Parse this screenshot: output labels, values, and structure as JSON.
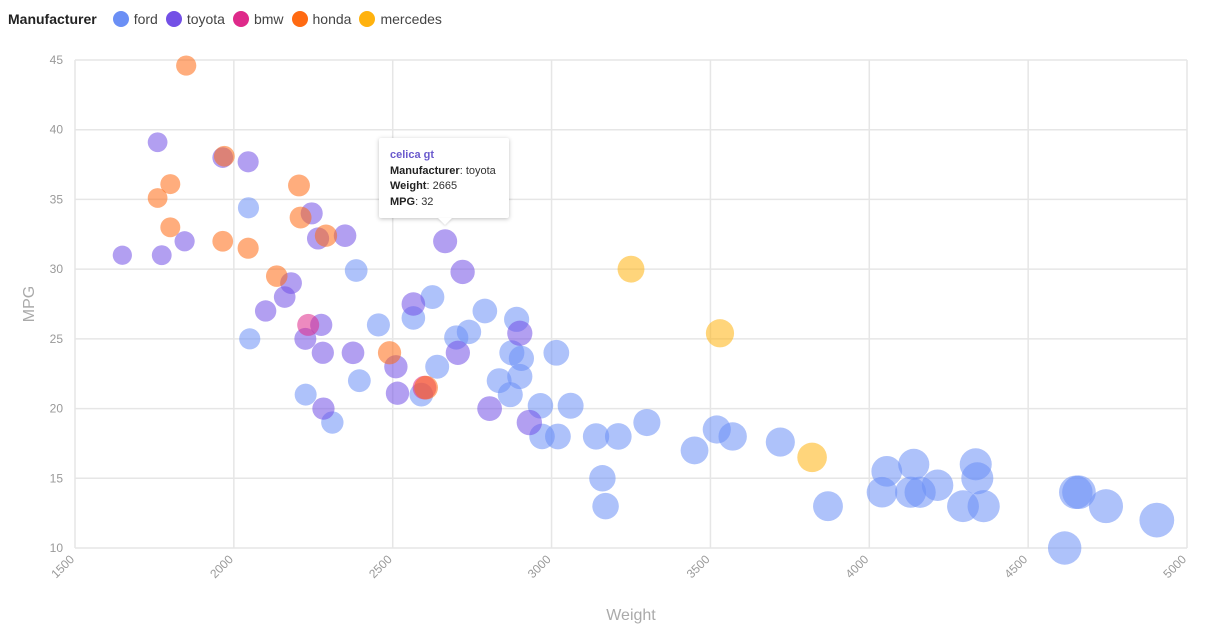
{
  "legend": {
    "title": "Manufacturer",
    "items": [
      {
        "label": "ford",
        "color": "#6b8ff5"
      },
      {
        "label": "toyota",
        "color": "#7350e6"
      },
      {
        "label": "bmw",
        "color": "#de2a8a"
      },
      {
        "label": "honda",
        "color": "#ff6a12"
      },
      {
        "label": "mercedes",
        "color": "#ffb20e"
      }
    ]
  },
  "tooltip": {
    "name": "celica gt",
    "manufacturer_label": "Manufacturer",
    "manufacturer": "toyota",
    "weight_label": "Weight",
    "weight": "2665",
    "mpg_label": "MPG",
    "mpg": "32"
  },
  "chart_data": {
    "type": "scatter",
    "title": "",
    "xlabel": "Weight",
    "ylabel": "MPG",
    "xlim": [
      1500,
      5000
    ],
    "ylim": [
      10,
      45
    ],
    "xticks": [
      1500,
      2000,
      2500,
      3000,
      3500,
      4000,
      4500,
      5000
    ],
    "yticks": [
      10,
      15,
      20,
      25,
      30,
      35,
      40,
      45
    ],
    "grid": true,
    "legend_position": "top-left",
    "size_encodes": "Weight",
    "series": [
      {
        "name": "ford",
        "color": "#6b8ff5",
        "x": [
          2046,
          2050,
          2226,
          2310,
          2395,
          2385,
          2455,
          2565,
          2590,
          2625,
          2640,
          2700,
          2740,
          2790,
          2835,
          2870,
          2875,
          2890,
          2900,
          2905,
          2965,
          2970,
          3015,
          3020,
          3060,
          3140,
          3160,
          3170,
          3210,
          3300,
          3450,
          3520,
          3570,
          3720,
          3870,
          4040,
          4055,
          4130,
          4140,
          4160,
          4215,
          4295,
          4335,
          4340,
          4360,
          4615,
          4650,
          4660,
          4745,
          4905
        ],
        "y": [
          34.4,
          25,
          21,
          19,
          22,
          29.9,
          26,
          26.5,
          21,
          28,
          23,
          25.1,
          25.5,
          27,
          22,
          21,
          24,
          26.4,
          22.3,
          23.6,
          20.2,
          18,
          24,
          18,
          20.2,
          18,
          15,
          13,
          18,
          19,
          17,
          18.5,
          18,
          17.6,
          13,
          14,
          15.5,
          14,
          16,
          14,
          14.5,
          13,
          16,
          15,
          13,
          10,
          14,
          14,
          13,
          12
        ]
      },
      {
        "name": "toyota",
        "color": "#7350e6",
        "x": [
          1649,
          1760,
          1773,
          1845,
          1965,
          2045,
          2100,
          2160,
          2180,
          2225,
          2245,
          2265,
          2275,
          2280,
          2282,
          2350,
          2375,
          2510,
          2515,
          2565,
          2665,
          2705,
          2720,
          2805,
          2900,
          2930
        ],
        "y": [
          31,
          39.1,
          31,
          32,
          38,
          37.7,
          27,
          28,
          29,
          25,
          34,
          32.2,
          26,
          24,
          20,
          32.4,
          24,
          23,
          21.1,
          27.5,
          32,
          24,
          29.8,
          20,
          25.4,
          19
        ]
      },
      {
        "name": "bmw",
        "color": "#de2a8a",
        "x": [
          2234,
          2600
        ],
        "y": [
          26,
          21.5
        ]
      },
      {
        "name": "honda",
        "color": "#ff6a12",
        "x": [
          1760,
          1800,
          1800,
          1850,
          1965,
          1970,
          2045,
          2135,
          2205,
          2210,
          2290,
          2490,
          2605
        ],
        "y": [
          35.1,
          33,
          36.1,
          44.6,
          32,
          38.1,
          31.5,
          29.5,
          36,
          33.7,
          32.4,
          24,
          21.5
        ]
      },
      {
        "name": "mercedes",
        "color": "#ffb20e",
        "x": [
          3250,
          3530,
          3820
        ],
        "y": [
          30,
          25.4,
          16.5
        ]
      }
    ]
  }
}
